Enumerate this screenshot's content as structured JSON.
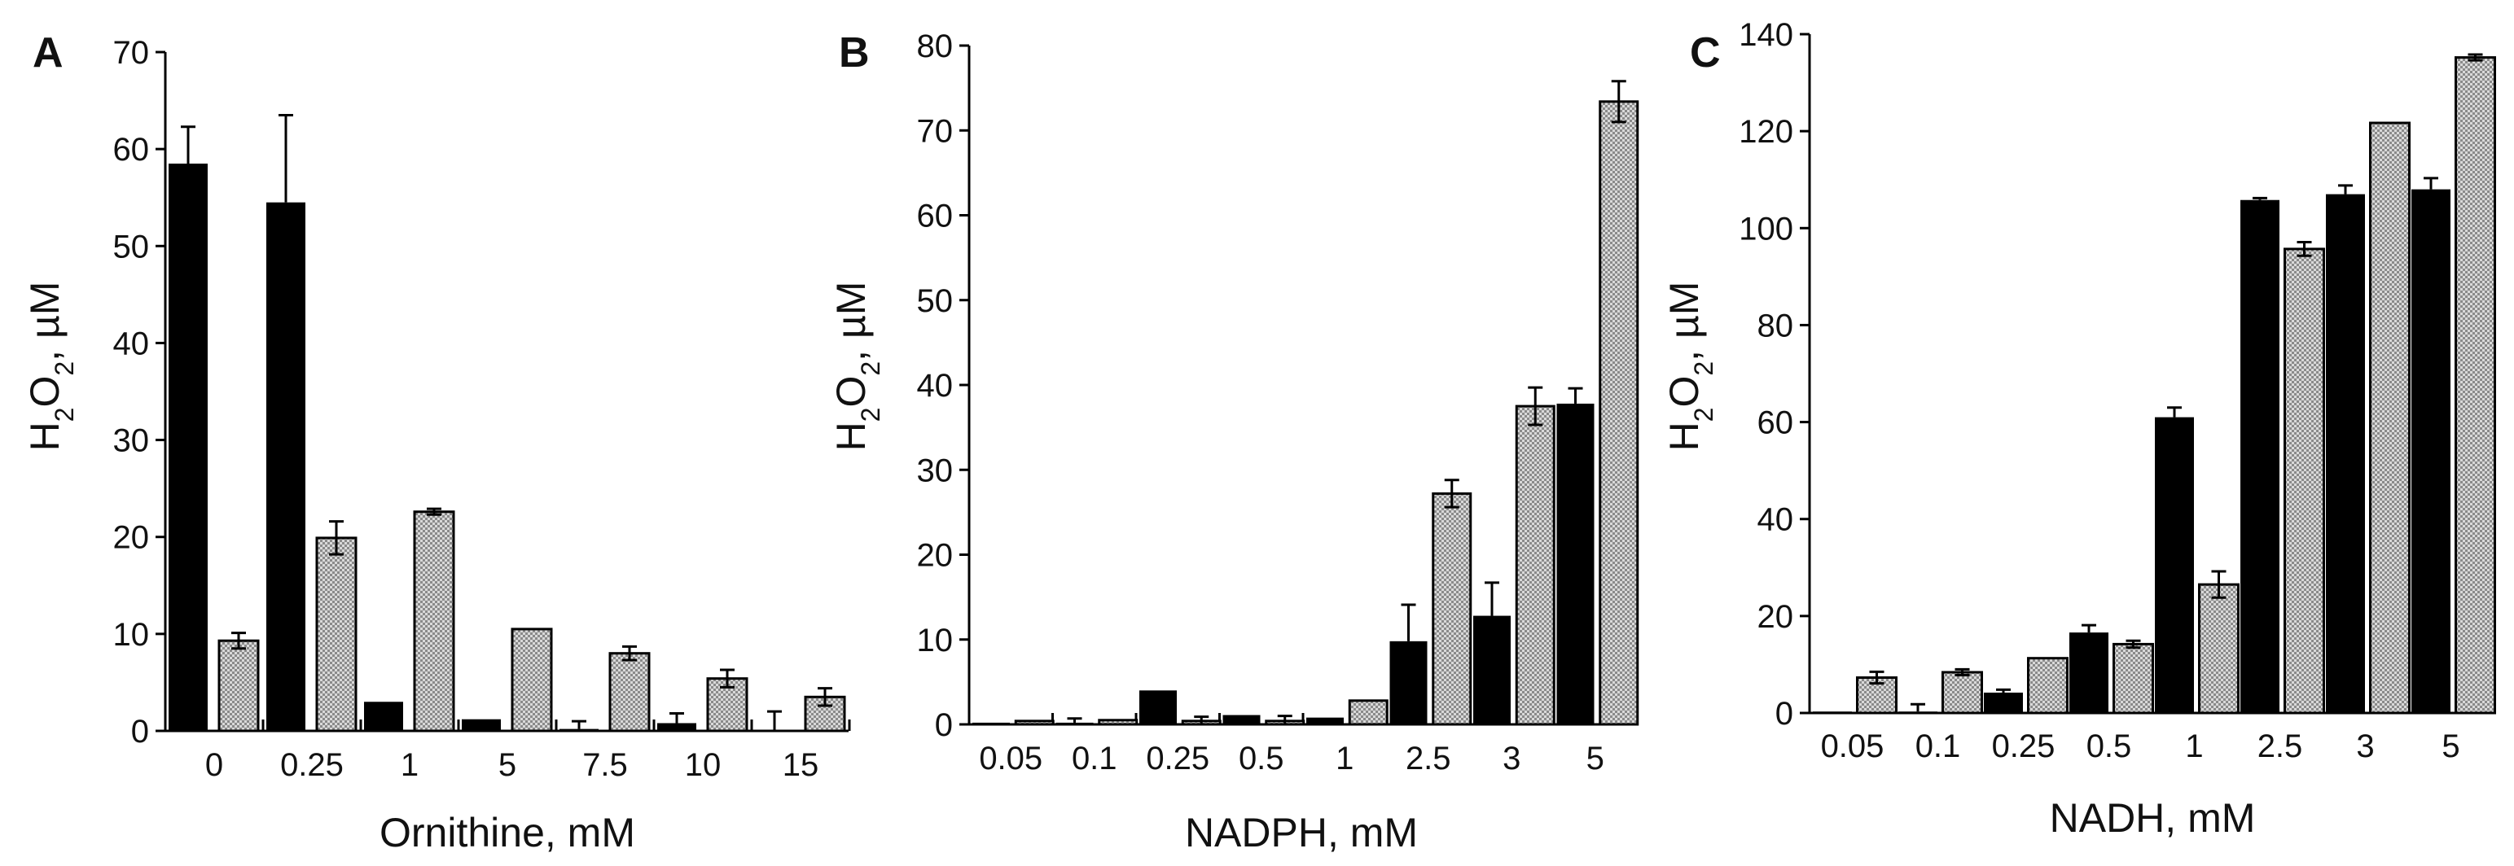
{
  "chart_data": [
    {
      "type": "bar",
      "panel": "A",
      "xlabel": "Ornithine, mM",
      "ylabel": {
        "main": "H",
        "sub1": "2",
        "mid": "O",
        "sub2": "2",
        "tail": ", µM"
      },
      "ylim": [
        0,
        70
      ],
      "yticks": [
        0,
        10,
        20,
        30,
        40,
        50,
        60,
        70
      ],
      "grid": false,
      "categories": [
        "0",
        "0.25",
        "1",
        "5",
        "7.5",
        "10",
        "15"
      ],
      "series": [
        {
          "fill": "solid",
          "color": "#000000",
          "values": [
            58.5,
            54.5,
            3.0,
            1.2,
            0.2,
            0.8,
            0.0
          ],
          "errors": [
            3.8,
            9.0,
            0,
            0,
            0.8,
            1.0,
            2.0
          ]
        },
        {
          "fill": "hatched",
          "color": "#bdbdbd",
          "values": [
            9.3,
            19.9,
            22.6,
            10.5,
            8.0,
            5.4,
            3.5
          ],
          "errors": [
            0.8,
            1.7,
            0.3,
            0,
            0.7,
            0.9,
            0.9
          ]
        }
      ]
    },
    {
      "type": "bar",
      "panel": "B",
      "xlabel": "NADPH, mM",
      "ylabel": {
        "main": "H",
        "sub1": "2",
        "mid": "O",
        "sub2": "2",
        "tail": ", µM"
      },
      "ylim": [
        0,
        80
      ],
      "yticks": [
        0,
        10,
        20,
        30,
        40,
        50,
        60,
        70,
        80
      ],
      "grid": false,
      "categories": [
        "0.05",
        "0.1",
        "0.25",
        "0.5",
        "1",
        "2.5",
        "3",
        "5"
      ],
      "series": [
        {
          "fill": "solid",
          "color": "#000000",
          "values": [
            0.2,
            0.2,
            4.0,
            1.1,
            0.8,
            9.8,
            12.8,
            37.8
          ],
          "errors": [
            0,
            0.5,
            0,
            0,
            0,
            4.3,
            3.9,
            1.8
          ]
        },
        {
          "fill": "hatched",
          "color": "#bdbdbd",
          "values": [
            0.4,
            0.5,
            0.4,
            0.4,
            2.8,
            27.2,
            37.5,
            73.4
          ],
          "errors": [
            0,
            0,
            0.5,
            0.6,
            0,
            1.6,
            2.2,
            2.4
          ]
        }
      ]
    },
    {
      "type": "bar",
      "panel": "C",
      "xlabel": "NADH, mM",
      "ylabel": {
        "main": "H",
        "sub1": "2",
        "mid": "O",
        "sub2": "2",
        "tail": ", µM"
      },
      "ylim": [
        0,
        140
      ],
      "yticks": [
        0,
        20,
        40,
        60,
        80,
        100,
        120,
        140
      ],
      "grid": false,
      "categories": [
        "0.05",
        "0.1",
        "0.25",
        "0.5",
        "1",
        "2.5",
        "3",
        "5"
      ],
      "series": [
        {
          "fill": "solid",
          "color": "#000000",
          "values": [
            0.3,
            0.3,
            4.2,
            16.6,
            61.0,
            105.8,
            107.0,
            108.0
          ],
          "errors": [
            0,
            1.5,
            0.6,
            1.5,
            2.0,
            0.4,
            1.8,
            2.3
          ]
        },
        {
          "fill": "hatched",
          "color": "#bdbdbd",
          "values": [
            7.3,
            8.4,
            11.3,
            14.2,
            26.5,
            95.7,
            121.7,
            135.2
          ],
          "errors": [
            1.2,
            0.6,
            0,
            0.7,
            2.7,
            1.4,
            0,
            0.6
          ]
        }
      ]
    }
  ]
}
